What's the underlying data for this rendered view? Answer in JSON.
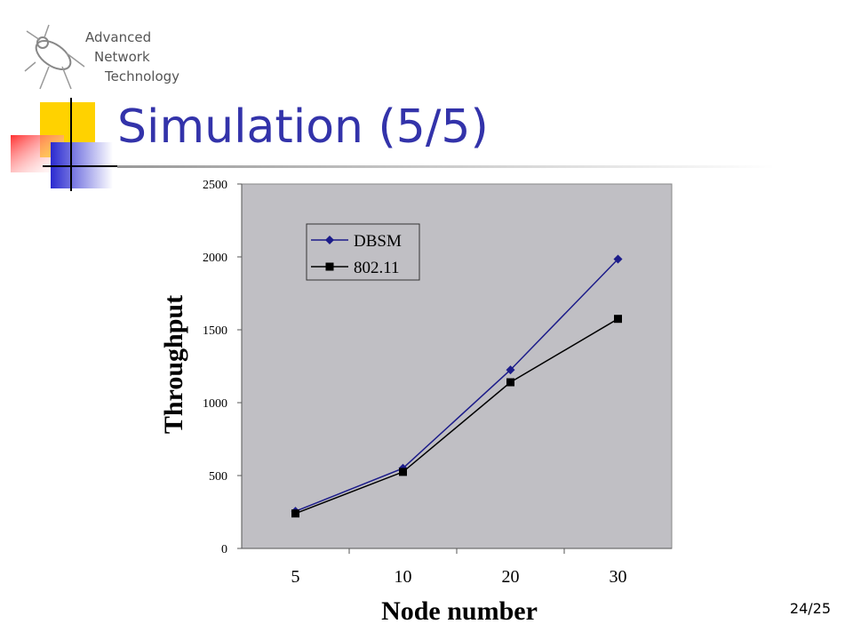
{
  "slide": {
    "logo_lines": [
      "Advanced",
      "Network",
      "Technology"
    ],
    "title": "Simulation (5/5)",
    "page_number": "24/25"
  },
  "chart_data": {
    "type": "line",
    "x_label": "Node number",
    "y_label": "Throughput",
    "categories": [
      "5",
      "10",
      "20",
      "30"
    ],
    "series": [
      {
        "name": "DBSM",
        "color": "#1c1c8a",
        "marker": "diamond",
        "values": [
          255,
          550,
          1225,
          1985
        ]
      },
      {
        "name": "802.11",
        "color": "#000000",
        "marker": "square",
        "values": [
          240,
          525,
          1140,
          1575
        ]
      }
    ],
    "ylim": [
      0,
      2500
    ],
    "yticks": [
      0,
      500,
      1000,
      1500,
      2000,
      2500
    ],
    "grid": false,
    "legend": "upper left",
    "background": "#c0bfc4"
  }
}
